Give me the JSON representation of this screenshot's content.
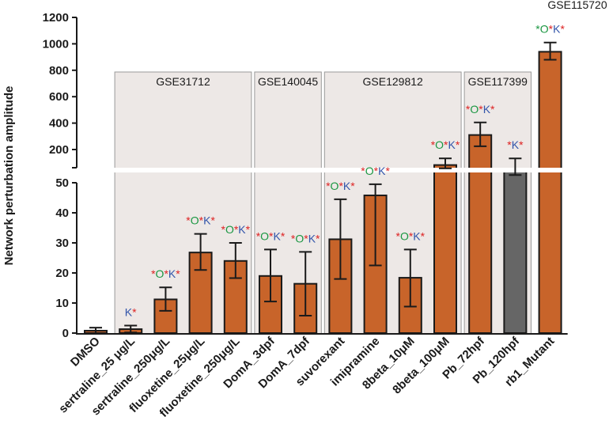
{
  "chart_data": {
    "type": "bar",
    "ylabel": "Network perturbation amplitude",
    "y_axis": {
      "segments": [
        {
          "range": [
            0,
            50
          ],
          "ticks": [
            0,
            10,
            20,
            30,
            40,
            50
          ]
        },
        {
          "range": [
            100,
            1200
          ],
          "ticks": [
            200,
            400,
            600,
            800,
            1000,
            1200
          ]
        }
      ],
      "broken": true
    },
    "categories": [
      "DMSO",
      "sertraline_25  μg/L",
      "sertraline_250μg/L",
      "fluoxetine_25μg/L",
      "fluoxetine_250μg/L",
      "DomA_3dpf",
      "DomA_7dpf",
      "suvorexant",
      "imipramine",
      "8beta_10μM",
      "8beta_100μM",
      "Pb_72hpf",
      "Pb_120hpf",
      "rb1_Mutant"
    ],
    "values": [
      0.8,
      1.3,
      11.2,
      26.8,
      24.0,
      19.0,
      16.4,
      31.2,
      45.8,
      18.4,
      130,
      310,
      100,
      940
    ],
    "error_low": [
      0,
      0.2,
      7.4,
      21.0,
      18.3,
      10.5,
      5.8,
      18.0,
      22.5,
      8.8,
      115,
      225,
      85,
      880
    ],
    "error_high": [
      1.8,
      2.5,
      15.2,
      33.0,
      30.0,
      27.8,
      27.0,
      44.5,
      49.5,
      27.8,
      160,
      405,
      160,
      1010
    ],
    "bar_colors": [
      "#c8642a",
      "#c8642a",
      "#c8642a",
      "#c8642a",
      "#c8642a",
      "#c8642a",
      "#c8642a",
      "#c8642a",
      "#c8642a",
      "#c8642a",
      "#c8642a",
      "#c8642a",
      "#666666",
      "#c8642a"
    ],
    "significance": [
      [],
      [
        {
          "t": "K",
          "c": "#3355aa"
        },
        {
          "t": "*",
          "c": "#dd2222"
        }
      ],
      [
        {
          "t": "*",
          "c": "#dd2222"
        },
        {
          "t": "O",
          "c": "#1a9641"
        },
        {
          "t": "*",
          "c": "#dd2222"
        },
        {
          "t": "K",
          "c": "#3355aa"
        },
        {
          "t": "*",
          "c": "#dd2222"
        }
      ],
      [
        {
          "t": "*",
          "c": "#dd2222"
        },
        {
          "t": "O",
          "c": "#1a9641"
        },
        {
          "t": "*",
          "c": "#dd2222"
        },
        {
          "t": "K",
          "c": "#3355aa"
        },
        {
          "t": "*",
          "c": "#dd2222"
        }
      ],
      [
        {
          "t": "*",
          "c": "#dd2222"
        },
        {
          "t": "O",
          "c": "#1a9641"
        },
        {
          "t": "*",
          "c": "#dd2222"
        },
        {
          "t": "K",
          "c": "#3355aa"
        },
        {
          "t": "*",
          "c": "#dd2222"
        }
      ],
      [
        {
          "t": "*",
          "c": "#dd2222"
        },
        {
          "t": "O",
          "c": "#1a9641"
        },
        {
          "t": "*",
          "c": "#dd2222"
        },
        {
          "t": "K",
          "c": "#3355aa"
        },
        {
          "t": "*",
          "c": "#dd2222"
        }
      ],
      [
        {
          "t": "*",
          "c": "#dd2222"
        },
        {
          "t": "O",
          "c": "#1a9641"
        },
        {
          "t": "*",
          "c": "#dd2222"
        },
        {
          "t": "K",
          "c": "#3355aa"
        },
        {
          "t": "*",
          "c": "#dd2222"
        }
      ],
      [
        {
          "t": "*",
          "c": "#dd2222"
        },
        {
          "t": "O",
          "c": "#1a9641"
        },
        {
          "t": "*",
          "c": "#dd2222"
        },
        {
          "t": "K",
          "c": "#3355aa"
        },
        {
          "t": "*",
          "c": "#dd2222"
        }
      ],
      [
        {
          "t": "*",
          "c": "#dd2222"
        },
        {
          "t": "O",
          "c": "#1a9641"
        },
        {
          "t": "*",
          "c": "#dd2222"
        },
        {
          "t": "K",
          "c": "#3355aa"
        },
        {
          "t": "*",
          "c": "#dd2222"
        }
      ],
      [
        {
          "t": "*",
          "c": "#dd2222"
        },
        {
          "t": "O",
          "c": "#1a9641"
        },
        {
          "t": "*",
          "c": "#dd2222"
        },
        {
          "t": "K",
          "c": "#3355aa"
        },
        {
          "t": "*",
          "c": "#dd2222"
        }
      ],
      [
        {
          "t": "*",
          "c": "#dd2222"
        },
        {
          "t": "O",
          "c": "#1a9641"
        },
        {
          "t": "*",
          "c": "#dd2222"
        },
        {
          "t": "K",
          "c": "#3355aa"
        },
        {
          "t": "*",
          "c": "#dd2222"
        }
      ],
      [
        {
          "t": "*",
          "c": "#dd2222"
        },
        {
          "t": "O",
          "c": "#1a9641"
        },
        {
          "t": "*",
          "c": "#dd2222"
        },
        {
          "t": "K",
          "c": "#3355aa"
        },
        {
          "t": "*",
          "c": "#dd2222"
        }
      ],
      [
        {
          "t": "*",
          "c": "#dd2222"
        },
        {
          "t": "K",
          "c": "#3355aa"
        },
        {
          "t": "*",
          "c": "#dd2222"
        }
      ],
      [
        {
          "t": "*",
          "c": "#1a9641"
        },
        {
          "t": "O",
          "c": "#1a9641"
        },
        {
          "t": "*",
          "c": "#dd2222"
        },
        {
          "t": "K",
          "c": "#3355aa"
        },
        {
          "t": "*",
          "c": "#dd2222"
        }
      ]
    ],
    "groups": [
      {
        "label": "GSE31712",
        "from": 1,
        "to": 4,
        "boxed": true
      },
      {
        "label": "GSE140045",
        "from": 5,
        "to": 6,
        "boxed": true
      },
      {
        "label": "GSE129812",
        "from": 7,
        "to": 10,
        "boxed": true
      },
      {
        "label": "GSE117399",
        "from": 11,
        "to": 12,
        "boxed": true
      },
      {
        "label": "GSE115720",
        "from": 13,
        "to": 13,
        "boxed": false
      }
    ],
    "colors": {
      "box_fill": "#ede8e6",
      "box_stroke": "#9a9a9a",
      "axis": "#1a1a1a"
    }
  }
}
